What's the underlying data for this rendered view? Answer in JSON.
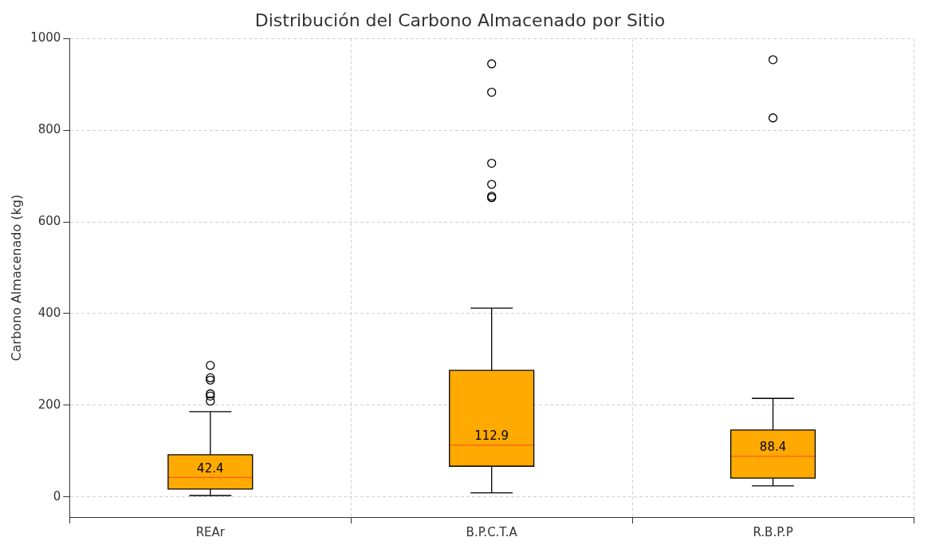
{
  "chart_data": {
    "type": "box",
    "title": "Distribución del Carbono Almacenado por Sitio",
    "ylabel": "Carbono Almacenado (kg)",
    "categories": [
      "REAr",
      "B.P.C.T.A",
      "R.B.P.P"
    ],
    "boxes": [
      {
        "low": 3,
        "q1": 17,
        "median": 42.4,
        "q3": 92,
        "high": 186,
        "outliers": [
          209,
          220,
          225,
          255,
          260,
          287
        ]
      },
      {
        "low": 9,
        "q1": 67,
        "median": 112.9,
        "q3": 276,
        "high": 412,
        "outliers": [
          653,
          656,
          682,
          728,
          883,
          945
        ]
      },
      {
        "low": 24,
        "q1": 41,
        "median": 88.4,
        "q3": 146,
        "high": 215,
        "outliers": [
          827,
          954
        ]
      }
    ],
    "color": "#ffaa00",
    "ylim": [
      -44,
      1000
    ],
    "yticks": [
      0,
      200,
      400,
      600,
      800,
      1000
    ],
    "grid": true,
    "value_labels": [
      "42.4",
      "112.9",
      "88.4"
    ]
  }
}
